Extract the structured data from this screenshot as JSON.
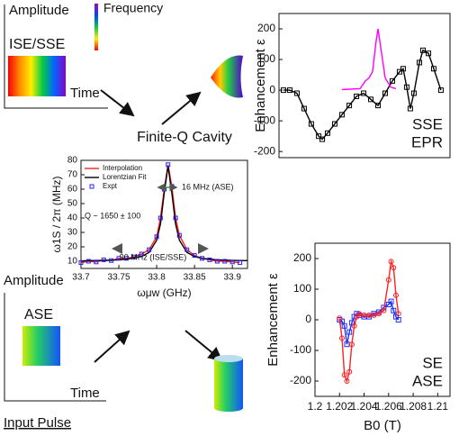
{
  "chart_data": [
    {
      "type": "line",
      "y_label": "Enhancement ε",
      "xlim": [
        0,
        100
      ],
      "ylim": [
        -220,
        250
      ],
      "yticks": [
        200,
        100,
        0,
        -100,
        -200
      ],
      "legend": "lower-right",
      "legend_style": "colored-text",
      "series": [
        {
          "name": "SSE",
          "color": "#000000",
          "marker": "square",
          "x": [
            2.6,
            6.3,
            10.5,
            14.7,
            18.9,
            23.2,
            25.3,
            28.4,
            32.6,
            36.8,
            41.1,
            45.3,
            49.5,
            53.7,
            57.9,
            62.1,
            66.3,
            70.5,
            72.6,
            74.7,
            76.8,
            78.9,
            82.1,
            84.2,
            87.4,
            90.5,
            94.7
          ],
          "values": [
            0,
            0,
            -10,
            -60,
            -110,
            -150,
            -160,
            -140,
            -110,
            -80,
            -50,
            -20,
            -10,
            -30,
            -50,
            -10,
            30,
            60,
            70,
            10,
            -60,
            -10,
            90,
            130,
            120,
            70,
            0
          ]
        },
        {
          "name": "EPR",
          "color": "#ff00ff",
          "marker": "none",
          "x": [
            36.8,
            47.4,
            50.5,
            52.6,
            54.7,
            56.8,
            57.9,
            60,
            62.1,
            65.3,
            68.4
          ],
          "values": [
            2,
            5,
            30,
            40,
            60,
            160,
            200,
            120,
            40,
            10,
            5
          ]
        }
      ]
    },
    {
      "type": "line",
      "x_label": "ωμw (GHz)",
      "y_label": "ω1S / 2π (MHz)",
      "xlim": [
        33.7,
        33.92
      ],
      "xticks": [
        33.7,
        33.75,
        33.8,
        33.85,
        33.9
      ],
      "ylim": [
        5,
        80
      ],
      "yticks": [
        10,
        20,
        30,
        40,
        50,
        60,
        70,
        80
      ],
      "legend": "upper-left",
      "legend_style": "lines",
      "annotations": [
        "16 MHz (ASE)",
        "Q ~ 1650 ± 100",
        "90 MHz (ISE/SSE)"
      ],
      "series": [
        {
          "name": "Interpolation",
          "color": "#ff2020",
          "marker": "none",
          "x": [
            33.7,
            33.71,
            33.72,
            33.73,
            33.74,
            33.75,
            33.76,
            33.77,
            33.78,
            33.79,
            33.8,
            33.805,
            33.81,
            33.815,
            33.82,
            33.825,
            33.83,
            33.84,
            33.85,
            33.86,
            33.87,
            33.88,
            33.89,
            33.9,
            33.91
          ],
          "values": [
            9,
            10,
            9.5,
            11,
            10.5,
            12,
            12,
            13,
            15,
            18,
            27,
            40,
            60,
            77,
            62,
            40,
            28,
            18,
            14,
            12,
            11,
            10,
            10,
            9.5,
            9
          ]
        },
        {
          "name": "Lorentzian Fit",
          "color": "#000000",
          "marker": "none",
          "x": [
            33.7,
            33.72,
            33.74,
            33.76,
            33.78,
            33.79,
            33.8,
            33.805,
            33.81,
            33.815,
            33.82,
            33.825,
            33.83,
            33.84,
            33.85,
            33.86,
            33.88,
            33.9,
            33.92
          ],
          "values": [
            10.3,
            10.5,
            10.7,
            11.4,
            13.3,
            16.1,
            24.6,
            35.8,
            57.5,
            76,
            57.5,
            35.8,
            24.6,
            16.1,
            13.3,
            12,
            11,
            10.6,
            10.4
          ]
        },
        {
          "name": "Expt",
          "color": "#2020ff",
          "marker": "square-only",
          "x": [
            33.7,
            33.71,
            33.72,
            33.73,
            33.74,
            33.75,
            33.76,
            33.77,
            33.78,
            33.79,
            33.8,
            33.805,
            33.81,
            33.815,
            33.82,
            33.825,
            33.83,
            33.84,
            33.85,
            33.86,
            33.87,
            33.88,
            33.89,
            33.9,
            33.91
          ],
          "values": [
            9,
            10,
            9.5,
            11,
            10.5,
            12,
            12,
            13,
            15,
            18,
            27,
            40,
            60,
            77,
            62,
            40,
            28,
            18,
            14,
            12,
            11,
            10,
            10,
            9.5,
            9
          ]
        }
      ]
    },
    {
      "type": "line",
      "x_label": "B0 (T)",
      "y_label": "Enhancement ε",
      "xlim": [
        1.2,
        1.211
      ],
      "xticks": [
        1.2,
        1.202,
        1.204,
        1.206,
        1.208,
        1.21
      ],
      "ylim": [
        -250,
        250
      ],
      "yticks": [
        200,
        100,
        0,
        -100,
        -200
      ],
      "legend": "lower-right",
      "legend_style": "colored-text",
      "series": [
        {
          "name": "SE",
          "color": "#2030ff",
          "marker": "square",
          "x": [
            1.202,
            1.2022,
            1.2024,
            1.2026,
            1.2028,
            1.203,
            1.2032,
            1.2034,
            1.2036,
            1.204,
            1.2044,
            1.2048,
            1.2052,
            1.2056,
            1.206,
            1.2062,
            1.2064,
            1.2066,
            1.2068
          ],
          "values": [
            0,
            -5,
            -20,
            -80,
            -40,
            -10,
            10,
            20,
            15,
            10,
            10,
            20,
            25,
            40,
            50,
            60,
            30,
            10,
            0
          ]
        },
        {
          "name": "ASE",
          "color": "#ff2020",
          "marker": "circle",
          "x": [
            1.202,
            1.2022,
            1.2024,
            1.2026,
            1.2028,
            1.203,
            1.2032,
            1.2034,
            1.2036,
            1.204,
            1.2044,
            1.2048,
            1.2052,
            1.2056,
            1.206,
            1.2062,
            1.2064,
            1.2066,
            1.2068
          ],
          "values": [
            5,
            -60,
            -180,
            -200,
            -170,
            -80,
            -20,
            10,
            20,
            15,
            15,
            15,
            20,
            30,
            130,
            190,
            170,
            80,
            20
          ]
        }
      ]
    }
  ],
  "diagram": {
    "top": {
      "amplitude": "Amplitude",
      "pulse": "ISE/SSE",
      "time": "Time",
      "frequency": "Frequency"
    },
    "cavity": "Finite-Q Cavity",
    "bottom": {
      "amplitude": "Amplitude",
      "pulse": "ASE",
      "time": "Time",
      "caption": "Input Pulse"
    }
  }
}
